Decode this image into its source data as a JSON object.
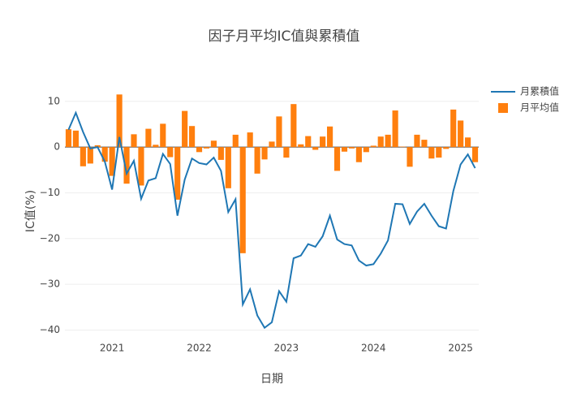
{
  "chart_data": {
    "type": "bar_line",
    "title": "因子月平均IC值與累積值",
    "x_label": "日期",
    "y_label": "IC值(%)",
    "x": [
      "2020-07",
      "2020-08",
      "2020-09",
      "2020-10",
      "2020-11",
      "2020-12",
      "2021-01",
      "2021-02",
      "2021-03",
      "2021-04",
      "2021-05",
      "2021-06",
      "2021-07",
      "2021-08",
      "2021-09",
      "2021-10",
      "2021-11",
      "2021-12",
      "2022-01",
      "2022-02",
      "2022-03",
      "2022-04",
      "2022-05",
      "2022-06",
      "2022-07",
      "2022-08",
      "2022-09",
      "2022-10",
      "2022-11",
      "2022-12",
      "2023-01",
      "2023-02",
      "2023-03",
      "2023-04",
      "2023-05",
      "2023-06",
      "2023-07",
      "2023-08",
      "2023-09",
      "2023-10",
      "2023-11",
      "2023-12",
      "2024-01",
      "2024-02",
      "2024-03",
      "2024-04",
      "2024-05",
      "2024-06",
      "2024-07",
      "2024-08",
      "2024-09",
      "2024-10",
      "2024-11",
      "2024-12",
      "2025-01",
      "2025-02",
      "2025-03"
    ],
    "series": [
      {
        "name": "月累積值",
        "kind": "line",
        "color": "#1f77b4",
        "values": [
          3.8,
          7.5,
          3.3,
          -0.3,
          0,
          -3.2,
          -9.3,
          2.2,
          -5.8,
          -3,
          -11.3,
          -7.3,
          -6.8,
          -1.5,
          -3.7,
          -15,
          -7.1,
          -2.5,
          -3.5,
          -3.8,
          -2.3,
          -5.2,
          -14.2,
          -11.4,
          -34.4,
          -31.1,
          -36.8,
          -39.5,
          -38.3,
          -31.5,
          -33.8,
          -24.3,
          -23.7,
          -21.2,
          -21.8,
          -19.5,
          -15,
          -20.2,
          -21.2,
          -21.5,
          -24.8,
          -25.9,
          -25.6,
          -23.3,
          -20.4,
          -12.4,
          -12.5,
          -16.8,
          -14.1,
          -12.4,
          -15,
          -17.3,
          -17.8,
          -9.6,
          -3.8,
          -1.6,
          -4.6
        ]
      },
      {
        "name": "月平均值",
        "kind": "bar",
        "color": "#ff7f0e",
        "values": [
          3.9,
          3.6,
          -4.2,
          -3.6,
          0.4,
          -3.2,
          -6.3,
          11.5,
          -8,
          2.8,
          -8.4,
          4,
          0.5,
          5.1,
          -2.2,
          -11.5,
          7.9,
          4.6,
          -1.1,
          -0.3,
          1.4,
          -2.8,
          -9,
          2.7,
          -23.2,
          3.2,
          -5.8,
          -2.7,
          1.2,
          6.7,
          -2.3,
          9.4,
          0.6,
          2.4,
          -0.6,
          2.3,
          4.5,
          -5.2,
          -1,
          -0.3,
          -3.3,
          -1.1,
          0.3,
          2.3,
          2.7,
          8,
          0.1,
          -4.3,
          2.7,
          1.6,
          -2.5,
          -2.3,
          -0.4,
          8.2,
          5.8,
          2.1,
          -3.3
        ]
      }
    ],
    "xticks": [
      {
        "value": "2021-01",
        "label": "2021"
      },
      {
        "value": "2022-01",
        "label": "2022"
      },
      {
        "value": "2023-01",
        "label": "2023"
      },
      {
        "value": "2024-01",
        "label": "2024"
      },
      {
        "value": "2025-01",
        "label": "2025"
      }
    ],
    "ylim": [
      -42.4,
      14.4
    ],
    "yticks": [
      10,
      0,
      {
        "value": -10,
        "label": "−10"
      },
      {
        "value": -20,
        "label": "−20"
      },
      {
        "value": -30,
        "label": "−30"
      },
      {
        "value": -40,
        "label": "−40"
      }
    ],
    "grid": true,
    "legend": "top-right"
  }
}
